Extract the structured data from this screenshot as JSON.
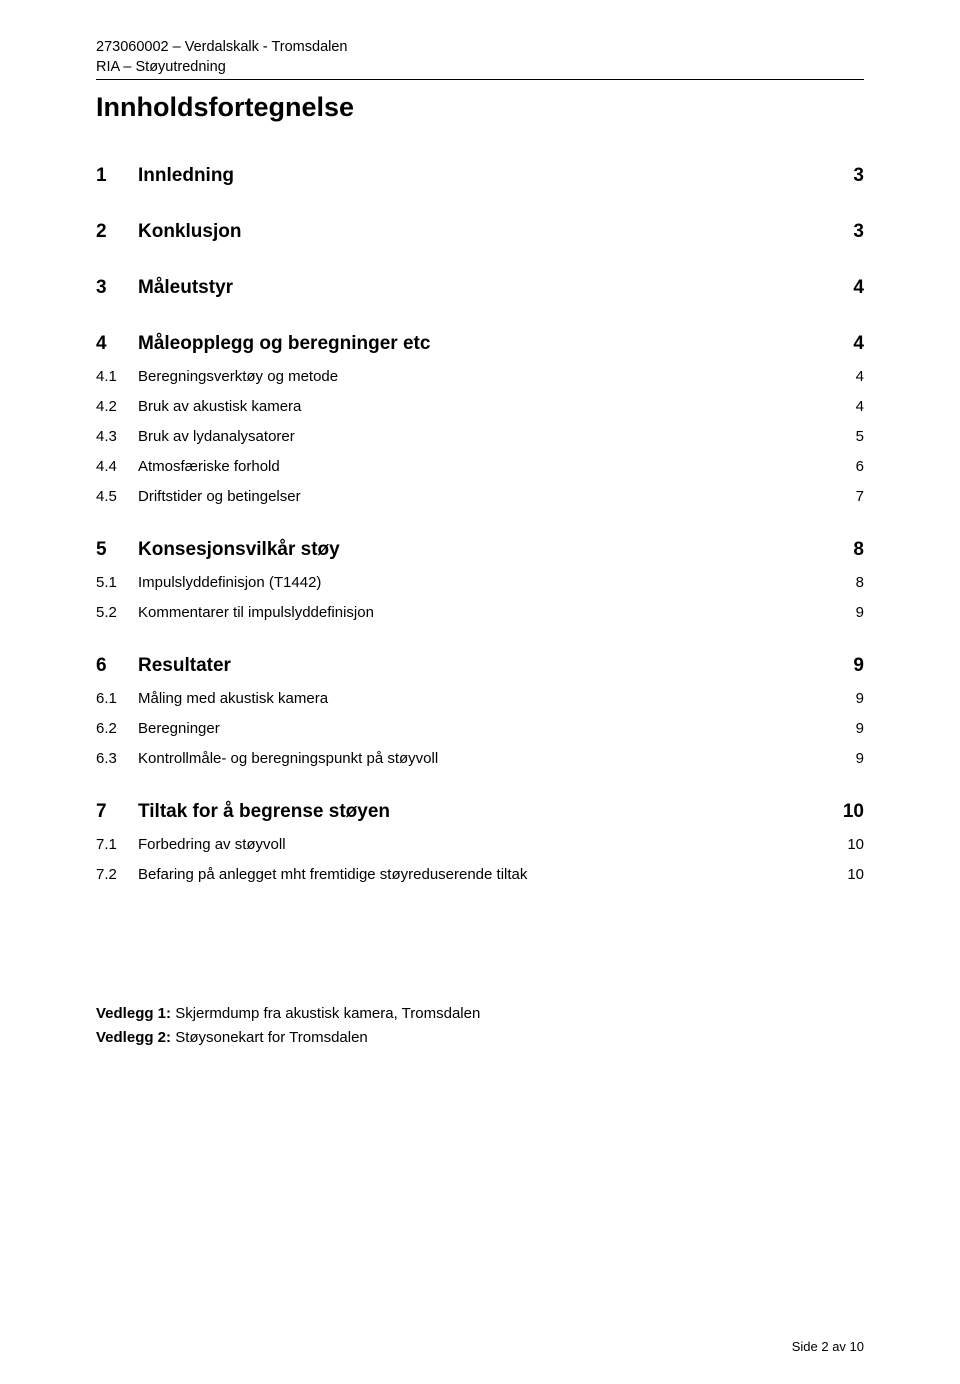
{
  "header": {
    "line1": "273060002 – Verdalskalk - Tromsdalen",
    "line2": "RIA – Støyutredning"
  },
  "title": "Innholdsfortegnelse",
  "toc": [
    {
      "level": 1,
      "num": "1",
      "label": "Innledning",
      "page": "3"
    },
    {
      "level": 1,
      "num": "2",
      "label": "Konklusjon",
      "page": "3"
    },
    {
      "level": 1,
      "num": "3",
      "label": "Måleutstyr",
      "page": "4"
    },
    {
      "level": 1,
      "num": "4",
      "label": "Måleopplegg og beregninger etc",
      "page": "4"
    },
    {
      "level": 2,
      "num": "4.1",
      "label": "Beregningsverktøy og metode",
      "page": "4"
    },
    {
      "level": 2,
      "num": "4.2",
      "label": "Bruk av akustisk kamera",
      "page": "4"
    },
    {
      "level": 2,
      "num": "4.3",
      "label": "Bruk av lydanalysatorer",
      "page": "5"
    },
    {
      "level": 2,
      "num": "4.4",
      "label": "Atmosfæriske forhold",
      "page": "6"
    },
    {
      "level": 2,
      "num": "4.5",
      "label": "Driftstider og betingelser",
      "page": "7"
    },
    {
      "level": 1,
      "num": "5",
      "label": "Konsesjonsvilkår støy",
      "page": "8"
    },
    {
      "level": 2,
      "num": "5.1",
      "label": "Impulslyddefinisjon (T1442)",
      "page": "8"
    },
    {
      "level": 2,
      "num": "5.2",
      "label": "Kommentarer til impulslyddefinisjon",
      "page": "9"
    },
    {
      "level": 1,
      "num": "6",
      "label": "Resultater",
      "page": "9"
    },
    {
      "level": 2,
      "num": "6.1",
      "label": "Måling med akustisk kamera",
      "page": "9"
    },
    {
      "level": 2,
      "num": "6.2",
      "label": "Beregninger",
      "page": "9"
    },
    {
      "level": 2,
      "num": "6.3",
      "label": "Kontrollmåle- og beregningspunkt på støyvoll",
      "page": "9"
    },
    {
      "level": 1,
      "num": "7",
      "label": "Tiltak for å begrense støyen",
      "page": "10"
    },
    {
      "level": 2,
      "num": "7.1",
      "label": "Forbedring av støyvoll",
      "page": "10"
    },
    {
      "level": 2,
      "num": "7.2",
      "label": "Befaring på anlegget mht fremtidige støyreduserende tiltak",
      "page": "10"
    }
  ],
  "appendix": [
    {
      "label": "Vedlegg 1:",
      "text": " Skjermdump fra akustisk kamera, Tromsdalen"
    },
    {
      "label": "Vedlegg 2:",
      "text": " Støysonekart for Tromsdalen"
    }
  ],
  "footer": "Side 2 av 10"
}
